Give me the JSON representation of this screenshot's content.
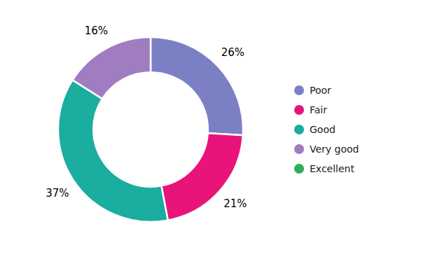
{
  "chart_data": {
    "type": "donut",
    "categories": [
      "Poor",
      "Fair",
      "Good",
      "Very good",
      "Excellent"
    ],
    "values": [
      26,
      21,
      37,
      16,
      0
    ],
    "value_labels": [
      "26%",
      "21%",
      "37%",
      "16%",
      null
    ],
    "colors": [
      "#7B7FC4",
      "#E8147A",
      "#1AADA0",
      "#A07DC0",
      "#2EAD5C"
    ],
    "data_labels": true,
    "legend": "right"
  }
}
